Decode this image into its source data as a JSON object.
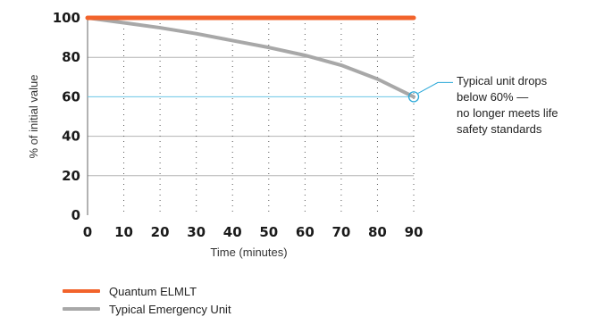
{
  "chart_data": {
    "type": "line",
    "title": "",
    "xlabel": "Time (minutes)",
    "ylabel": "% of initial value",
    "xlim": [
      0,
      90
    ],
    "ylim": [
      0,
      100
    ],
    "x_ticks": [
      "0",
      "10",
      "20",
      "30",
      "40",
      "50",
      "60",
      "70",
      "80",
      "90"
    ],
    "y_ticks": [
      "0",
      "20",
      "40",
      "60",
      "80",
      "100"
    ],
    "grid": "horizontal solid at 20, 40, 60, 80, 100; vertical dotted at each x tick",
    "reference_line": {
      "y": 60,
      "color": "#6cc6e6"
    },
    "series": [
      {
        "name": "Quantum ELMLT",
        "color": "#f2632b",
        "x": [
          0,
          10,
          20,
          30,
          40,
          50,
          60,
          70,
          80,
          90
        ],
        "y": [
          100,
          100,
          100,
          100,
          100,
          100,
          100,
          100,
          100,
          100
        ]
      },
      {
        "name": "Typical Emergency Unit",
        "color": "#a8a8a8",
        "x": [
          0,
          10,
          20,
          30,
          40,
          50,
          60,
          70,
          80,
          90
        ],
        "y": [
          100,
          97.5,
          95,
          92,
          88.5,
          85,
          81,
          76,
          69,
          60
        ]
      }
    ],
    "annotation": {
      "lines": [
        "Typical unit drops",
        "below 60% —",
        "no longer meets life",
        "safety standards"
      ],
      "point": {
        "x": 90,
        "y": 60
      },
      "color": "#2aa8d8"
    },
    "legend_position": "bottom-left"
  }
}
